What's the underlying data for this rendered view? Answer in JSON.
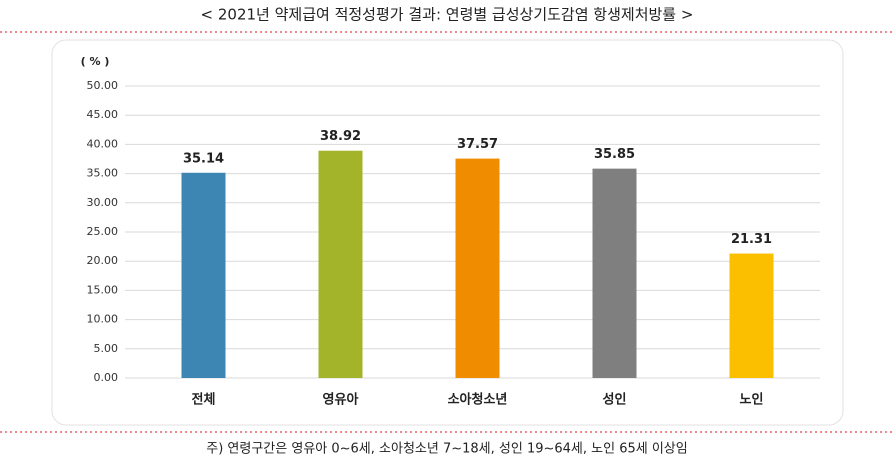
{
  "chart_data": {
    "type": "bar",
    "title": "< 2021년 약제급여 적정성평가 결과: 연령별 급성상기도감염 항생제처방률 >",
    "y_label": "( % )",
    "footnote": "주) 연령구간은 영유아 0~6세, 소아청소년 7~18세, 성인 19~64세, 노인 65세 이상임",
    "categories": [
      "전체",
      "영유아",
      "소아청소년",
      "성인",
      "노인"
    ],
    "values": [
      35.14,
      38.92,
      37.57,
      35.85,
      21.31
    ],
    "colors": [
      "#3d86b4",
      "#a3b42a",
      "#f08c00",
      "#7f7f7f",
      "#fbbf00"
    ],
    "ylim": [
      0,
      50
    ],
    "yticks": [
      {
        "value": 0,
        "label": "0.00"
      },
      {
        "value": 5,
        "label": "5.00"
      },
      {
        "value": 10,
        "label": "10.00"
      },
      {
        "value": 15,
        "label": "15.00"
      },
      {
        "value": 20,
        "label": "20.00"
      },
      {
        "value": 25,
        "label": "25.00"
      },
      {
        "value": 30,
        "label": "30.00"
      },
      {
        "value": 35,
        "label": "35.00"
      },
      {
        "value": 40,
        "label": "40.00"
      },
      {
        "value": 45,
        "label": "45.00"
      },
      {
        "value": 50,
        "label": "50.00"
      }
    ],
    "grid": true
  }
}
